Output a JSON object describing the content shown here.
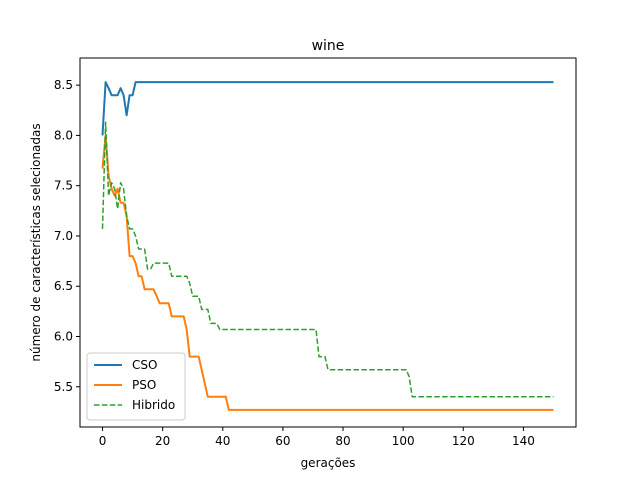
{
  "chart_data": {
    "type": "line",
    "title": "wine",
    "xlabel": "gerações",
    "ylabel": "número de características selecionadas",
    "xlim": [
      -7.5,
      157.5
    ],
    "ylim": [
      5.1,
      8.77
    ],
    "xticks": [
      0,
      20,
      40,
      60,
      80,
      100,
      120,
      140
    ],
    "yticks": [
      5.5,
      6.0,
      6.5,
      7.0,
      7.5,
      8.0,
      8.5
    ],
    "grid": false,
    "legend": "lower-left",
    "series": [
      {
        "name": "CSO",
        "color": "#1f77b4",
        "style": "solid",
        "points": [
          [
            0,
            8.0
          ],
          [
            1,
            8.53
          ],
          [
            2,
            8.47
          ],
          [
            3,
            8.4
          ],
          [
            4,
            8.4
          ],
          [
            5,
            8.4
          ],
          [
            6,
            8.47
          ],
          [
            7,
            8.4
          ],
          [
            8,
            8.2
          ],
          [
            9,
            8.4
          ],
          [
            10,
            8.4
          ],
          [
            11,
            8.53
          ],
          [
            12,
            8.53
          ],
          [
            150,
            8.53
          ]
        ]
      },
      {
        "name": "PSO",
        "color": "#ff7f0e",
        "style": "solid",
        "points": [
          [
            0,
            7.67
          ],
          [
            1,
            8.0
          ],
          [
            2,
            7.6
          ],
          [
            3,
            7.47
          ],
          [
            4,
            7.4
          ],
          [
            5,
            7.47
          ],
          [
            6,
            7.33
          ],
          [
            7,
            7.33
          ],
          [
            8,
            7.2
          ],
          [
            9,
            6.8
          ],
          [
            10,
            6.8
          ],
          [
            11,
            6.73
          ],
          [
            12,
            6.6
          ],
          [
            13,
            6.6
          ],
          [
            14,
            6.47
          ],
          [
            15,
            6.47
          ],
          [
            17,
            6.47
          ],
          [
            18,
            6.4
          ],
          [
            19,
            6.33
          ],
          [
            22,
            6.33
          ],
          [
            23,
            6.2
          ],
          [
            27,
            6.2
          ],
          [
            28,
            6.07
          ],
          [
            29,
            5.8
          ],
          [
            32,
            5.8
          ],
          [
            35,
            5.4
          ],
          [
            41,
            5.4
          ],
          [
            42,
            5.27
          ],
          [
            150,
            5.27
          ]
        ]
      },
      {
        "name": "Hibrido",
        "color": "#2ca02c",
        "style": "dashed",
        "points": [
          [
            0,
            7.07
          ],
          [
            1,
            8.13
          ],
          [
            2,
            7.4
          ],
          [
            3,
            7.53
          ],
          [
            4,
            7.47
          ],
          [
            5,
            7.27
          ],
          [
            6,
            7.53
          ],
          [
            7,
            7.47
          ],
          [
            8,
            7.2
          ],
          [
            9,
            7.07
          ],
          [
            10,
            7.07
          ],
          [
            11,
            7.0
          ],
          [
            12,
            6.87
          ],
          [
            14,
            6.87
          ],
          [
            15,
            6.67
          ],
          [
            16,
            6.67
          ],
          [
            17,
            6.73
          ],
          [
            22,
            6.73
          ],
          [
            23,
            6.6
          ],
          [
            28,
            6.6
          ],
          [
            29,
            6.53
          ],
          [
            30,
            6.4
          ],
          [
            32,
            6.4
          ],
          [
            33,
            6.27
          ],
          [
            35,
            6.27
          ],
          [
            36,
            6.13
          ],
          [
            38,
            6.13
          ],
          [
            39,
            6.07
          ],
          [
            71,
            6.07
          ],
          [
            72,
            5.8
          ],
          [
            74,
            5.8
          ],
          [
            75,
            5.67
          ],
          [
            101,
            5.67
          ],
          [
            102,
            5.6
          ],
          [
            103,
            5.4
          ],
          [
            150,
            5.4
          ]
        ]
      }
    ]
  }
}
